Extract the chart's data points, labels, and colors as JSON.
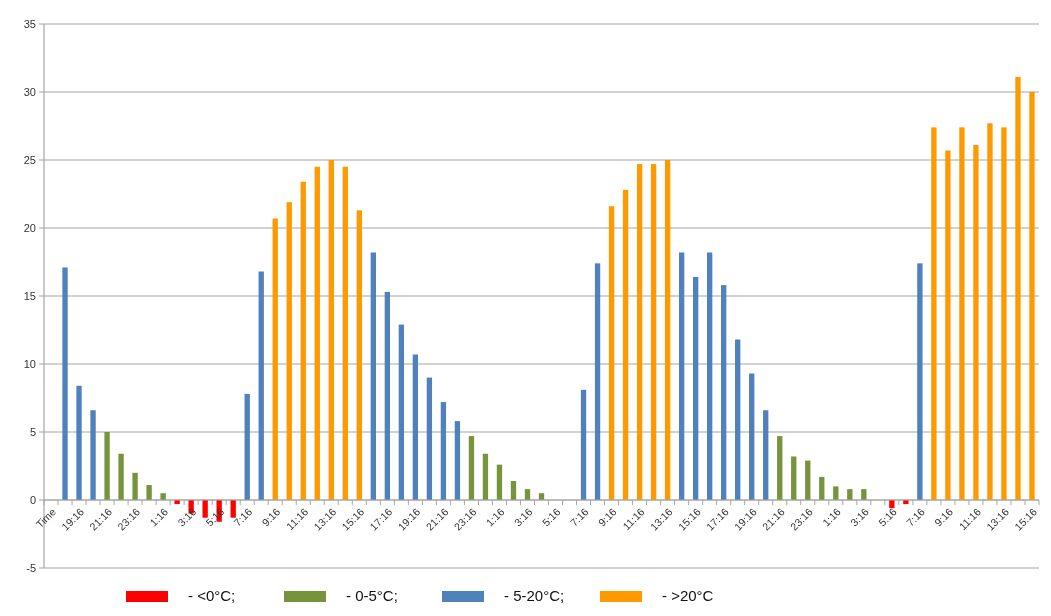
{
  "chart_data": {
    "type": "bar",
    "stacked": true,
    "categories": [
      "Time",
      null,
      "19:16",
      null,
      "21:16",
      null,
      "23:16",
      null,
      "1:16",
      null,
      "3:16",
      null,
      "5:16",
      null,
      "7:16",
      null,
      "9:16",
      null,
      "11:16",
      null,
      "13:16",
      null,
      "15:16",
      null,
      "17:16",
      null,
      "19:16",
      null,
      "21:16",
      null,
      "23:16",
      null,
      "1:16",
      null,
      "3:16",
      null,
      "5:16",
      null,
      "7:16",
      null,
      "9:16",
      null,
      "11:16",
      null,
      "13:16",
      null,
      "15:16",
      null,
      "17:16",
      null,
      "19:16",
      null,
      "21:16",
      null,
      "23:16",
      null,
      "1:16",
      null,
      "3:16",
      null,
      "5:16",
      null,
      "7:16",
      null,
      "9:16",
      null,
      "11:16",
      null,
      "13:16",
      null,
      "15:16"
    ],
    "series": [
      {
        "name": "- <0°C;",
        "color": "#ff0000",
        "values": [
          null,
          null,
          null,
          null,
          null,
          null,
          null,
          null,
          null,
          -0.3,
          -1.0,
          -1.3,
          -1.6,
          -1.3,
          null,
          null,
          null,
          null,
          null,
          null,
          null,
          null,
          null,
          null,
          null,
          null,
          null,
          null,
          null,
          null,
          null,
          null,
          null,
          null,
          null,
          null,
          null,
          null,
          null,
          null,
          null,
          null,
          null,
          null,
          null,
          null,
          null,
          null,
          null,
          null,
          null,
          null,
          null,
          null,
          null,
          null,
          null,
          null,
          null,
          null,
          -0.6,
          -0.3,
          null,
          null,
          null,
          null,
          null,
          null,
          null,
          null,
          null
        ]
      },
      {
        "name": "- 0-5°C;",
        "color": "#77933c",
        "values": [
          null,
          null,
          null,
          null,
          5.0,
          3.4,
          2.0,
          1.1,
          0.5,
          null,
          null,
          null,
          null,
          null,
          null,
          null,
          null,
          null,
          null,
          null,
          null,
          null,
          null,
          null,
          null,
          null,
          null,
          null,
          null,
          null,
          4.7,
          3.4,
          2.6,
          1.4,
          0.8,
          0.5,
          null,
          null,
          null,
          null,
          null,
          null,
          null,
          null,
          null,
          null,
          null,
          null,
          null,
          null,
          null,
          null,
          4.7,
          3.2,
          2.9,
          1.7,
          1.0,
          0.8,
          0.8,
          null,
          null,
          null,
          null,
          null,
          null,
          null,
          null,
          null,
          null,
          null,
          null
        ]
      },
      {
        "name": "- 5-20°C;",
        "color": "#4f81bd",
        "values": [
          null,
          17.1,
          8.4,
          6.6,
          null,
          null,
          null,
          null,
          null,
          null,
          null,
          null,
          null,
          null,
          7.8,
          16.8,
          null,
          null,
          null,
          null,
          null,
          null,
          null,
          18.2,
          15.3,
          12.9,
          10.7,
          9.0,
          7.2,
          5.8,
          null,
          null,
          null,
          null,
          null,
          null,
          null,
          null,
          8.1,
          17.4,
          null,
          null,
          null,
          null,
          null,
          18.2,
          16.4,
          18.2,
          15.8,
          11.8,
          9.3,
          6.6,
          null,
          null,
          null,
          null,
          null,
          null,
          null,
          null,
          null,
          null,
          17.4,
          null,
          null,
          null,
          null,
          null,
          null,
          null,
          null
        ]
      },
      {
        "name": "- >20°C",
        "color": "#ff9900",
        "values": [
          null,
          null,
          null,
          null,
          null,
          null,
          null,
          null,
          null,
          null,
          null,
          null,
          null,
          null,
          null,
          null,
          20.7,
          21.9,
          23.4,
          24.5,
          25.0,
          24.5,
          21.3,
          null,
          null,
          null,
          null,
          null,
          null,
          null,
          null,
          null,
          null,
          null,
          null,
          null,
          null,
          null,
          null,
          null,
          21.6,
          22.8,
          24.7,
          24.7,
          25.0,
          null,
          null,
          null,
          null,
          null,
          null,
          null,
          null,
          null,
          null,
          null,
          null,
          null,
          null,
          null,
          null,
          null,
          null,
          27.4,
          25.7,
          27.4,
          26.1,
          27.7,
          27.4,
          31.1,
          30.0
        ]
      }
    ],
    "ylim": [
      -5,
      35
    ],
    "yticks": [
      -5,
      0,
      5,
      10,
      15,
      20,
      25,
      30,
      35
    ],
    "grid": "y",
    "legend": "bottom"
  }
}
